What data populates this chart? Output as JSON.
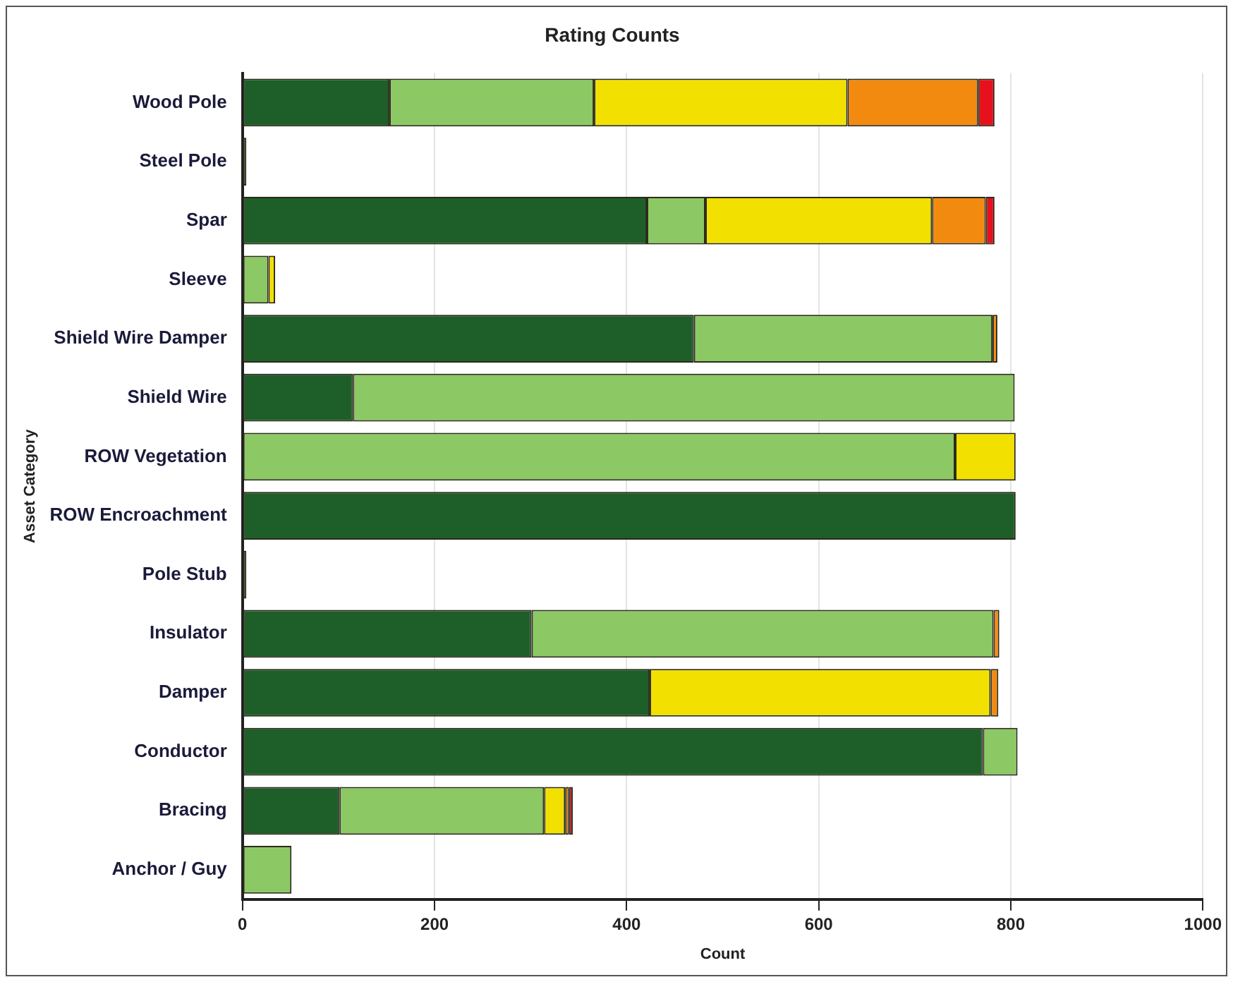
{
  "chart_data": {
    "type": "bar",
    "orientation": "horizontal",
    "stacked": true,
    "title": "Rating Counts",
    "xlabel": "Count",
    "ylabel": "Asset Category",
    "categories": [
      "Wood Pole",
      "Steel Pole",
      "Spar",
      "Sleeve",
      "Shield Wire Damper",
      "Shield Wire",
      "ROW Vegetation",
      "ROW Encroachment",
      "Pole Stub",
      "Insulator",
      "Damper",
      "Conductor",
      "Bracing",
      "Anchor / Guy"
    ],
    "series": [
      {
        "color": "#1e5e28",
        "values": [
          153,
          4,
          421,
          0,
          470,
          115,
          0,
          805,
          4,
          301,
          424,
          771,
          101,
          0
        ]
      },
      {
        "color": "#8cc864",
        "values": [
          213,
          0,
          61,
          27,
          311,
          689,
          742,
          0,
          0,
          481,
          0,
          36,
          213,
          51
        ]
      },
      {
        "color": "#f2e000",
        "values": [
          264,
          0,
          236,
          7,
          0,
          0,
          63,
          0,
          0,
          0,
          355,
          0,
          22,
          0
        ]
      },
      {
        "color": "#f28a10",
        "values": [
          136,
          0,
          56,
          0,
          5,
          0,
          0,
          0,
          0,
          6,
          8,
          0,
          4,
          0
        ]
      },
      {
        "color": "#e8101c",
        "values": [
          17,
          0,
          9,
          0,
          0,
          0,
          0,
          0,
          0,
          0,
          0,
          0,
          4,
          0
        ]
      }
    ],
    "xlim": [
      0,
      1000
    ],
    "xticks": [
      0,
      200,
      400,
      600,
      800,
      1000
    ],
    "grid": "x",
    "legend": false
  }
}
